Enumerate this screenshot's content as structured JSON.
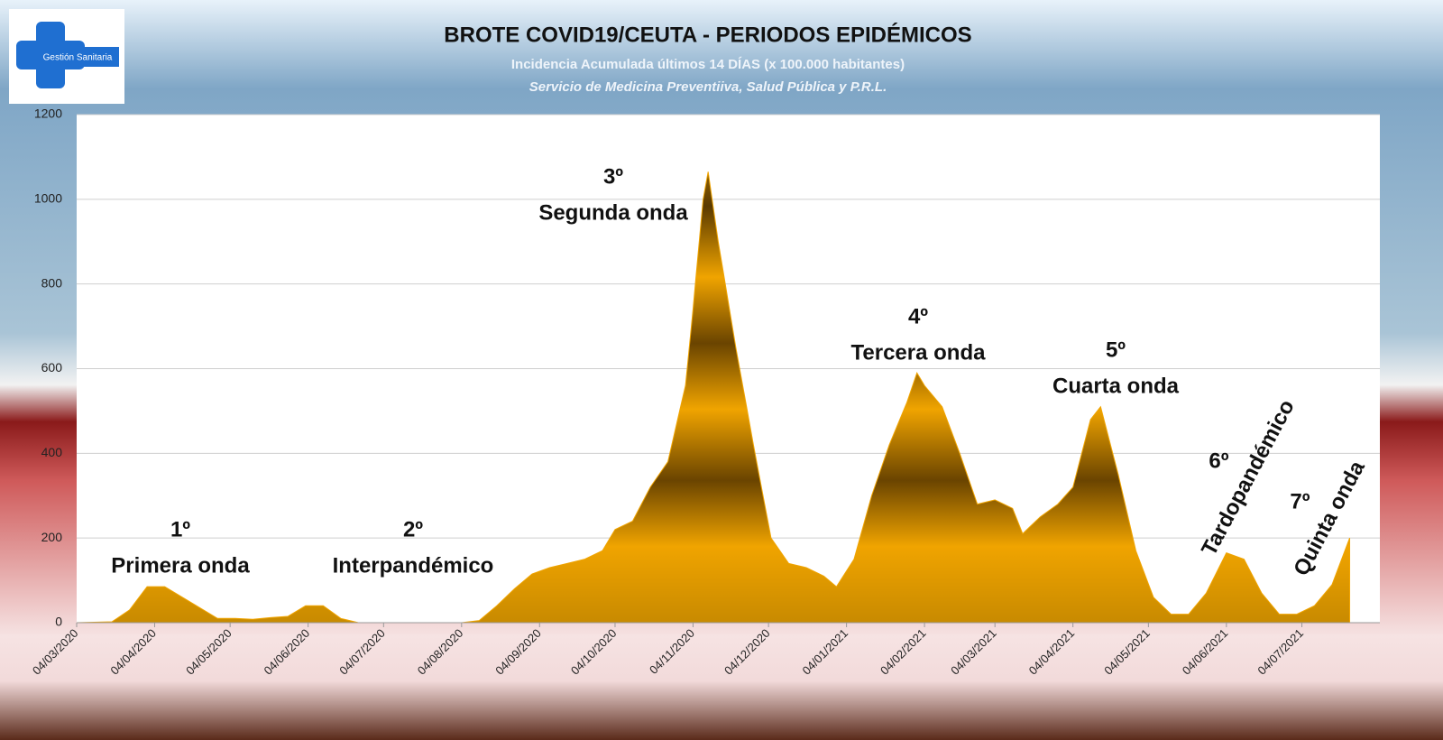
{
  "chart_data": {
    "type": "area",
    "title": "BROTE COVID19/CEUTA - PERIODOS EPIDÉMICOS",
    "subtitle": "Incidencia Acumulada últimos 14 DÍAS (x 100.000 habitantes)",
    "source": "Servicio de Medicina Preventiiva, Salud Pública y P.R.L.",
    "logo_text": "Gestión Sanitaria",
    "color": "#f0a400",
    "grid": true,
    "x": [
      "2020-03-04",
      "2020-03-18",
      "2020-03-25",
      "2020-04-01",
      "2020-04-08",
      "2020-04-15",
      "2020-04-22",
      "2020-04-29",
      "2020-05-06",
      "2020-05-13",
      "2020-05-20",
      "2020-05-27",
      "2020-06-03",
      "2020-06-10",
      "2020-06-17",
      "2020-06-24",
      "2020-07-15",
      "2020-08-04",
      "2020-08-11",
      "2020-08-18",
      "2020-08-25",
      "2020-09-01",
      "2020-09-08",
      "2020-09-15",
      "2020-09-22",
      "2020-09-29",
      "2020-10-04",
      "2020-10-11",
      "2020-10-18",
      "2020-10-25",
      "2020-11-01",
      "2020-11-04",
      "2020-11-08",
      "2020-11-10",
      "2020-11-14",
      "2020-11-21",
      "2020-11-28",
      "2020-12-05",
      "2020-12-12",
      "2020-12-19",
      "2020-12-26",
      "2020-12-31",
      "2021-01-07",
      "2021-01-14",
      "2021-01-21",
      "2021-01-28",
      "2021-02-01",
      "2021-02-04",
      "2021-02-11",
      "2021-02-18",
      "2021-02-25",
      "2021-03-04",
      "2021-03-11",
      "2021-03-15",
      "2021-03-22",
      "2021-03-29",
      "2021-04-04",
      "2021-04-11",
      "2021-04-15",
      "2021-04-22",
      "2021-04-29",
      "2021-05-06",
      "2021-05-13",
      "2021-05-20",
      "2021-05-27",
      "2021-06-04",
      "2021-06-11",
      "2021-06-18",
      "2021-06-25",
      "2021-07-02",
      "2021-07-09",
      "2021-07-16",
      "2021-07-23"
    ],
    "values": [
      0,
      2,
      30,
      85,
      85,
      60,
      35,
      10,
      10,
      8,
      12,
      15,
      40,
      40,
      10,
      0,
      0,
      0,
      5,
      40,
      80,
      115,
      130,
      140,
      150,
      170,
      220,
      240,
      320,
      380,
      560,
      740,
      1000,
      1065,
      900,
      650,
      420,
      200,
      140,
      130,
      110,
      85,
      150,
      300,
      420,
      520,
      590,
      560,
      510,
      400,
      280,
      290,
      270,
      210,
      250,
      280,
      320,
      480,
      510,
      350,
      170,
      60,
      20,
      20,
      70,
      165,
      150,
      70,
      20,
      20,
      40,
      90,
      200
    ],
    "xlim": [
      "2020-03-04",
      "2021-08-04"
    ],
    "xticks": [
      {
        "value": "2020-03-04",
        "label": "04/03/2020"
      },
      {
        "value": "2020-04-04",
        "label": "04/04/2020"
      },
      {
        "value": "2020-05-04",
        "label": "04/05/2020"
      },
      {
        "value": "2020-06-04",
        "label": "04/06/2020"
      },
      {
        "value": "2020-07-04",
        "label": "04/07/2020"
      },
      {
        "value": "2020-08-04",
        "label": "04/08/2020"
      },
      {
        "value": "2020-09-04",
        "label": "04/09/2020"
      },
      {
        "value": "2020-10-04",
        "label": "04/10/2020"
      },
      {
        "value": "2020-11-04",
        "label": "04/11/2020"
      },
      {
        "value": "2020-12-04",
        "label": "04/12/2020"
      },
      {
        "value": "2021-01-04",
        "label": "04/01/2021"
      },
      {
        "value": "2021-02-04",
        "label": "04/02/2021"
      },
      {
        "value": "2021-03-04",
        "label": "04/03/2021"
      },
      {
        "value": "2021-04-04",
        "label": "04/04/2021"
      },
      {
        "value": "2021-05-04",
        "label": "04/05/2021"
      },
      {
        "value": "2021-06-04",
        "label": "04/06/2021"
      },
      {
        "value": "2021-07-04",
        "label": "04/07/2021"
      }
    ],
    "ylim": [
      0,
      1200
    ],
    "yticks": [
      0,
      200,
      400,
      600,
      800,
      1000,
      1200
    ],
    "annotations": [
      [
        "1º",
        "Primera onda"
      ],
      [
        "2º",
        "Interpandémico"
      ],
      [
        "3º",
        "Segunda onda"
      ],
      [
        "4º",
        "Tercera onda"
      ],
      [
        "5º",
        "Cuarta onda"
      ],
      [
        "6º",
        "Tardopandémico"
      ],
      [
        "7º",
        "Quinta onda"
      ]
    ]
  }
}
